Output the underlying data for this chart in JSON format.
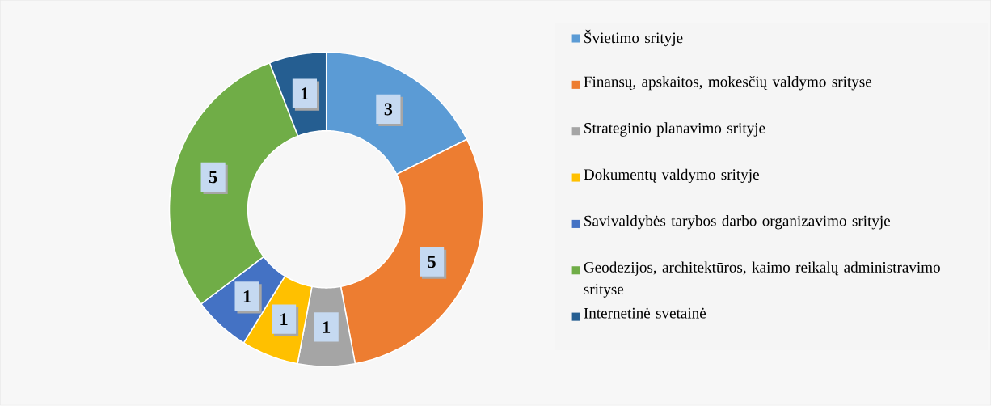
{
  "chart_data": {
    "type": "donut",
    "categories": [
      "Švietimo srityje",
      "Finansų, apskaitos, mokesčių valdymo srityse",
      "Strateginio planavimo srityje",
      "Dokumentų valdymo srityje",
      "Savivaldybės tarybos darbo organizavimo srityje",
      "Geodezijos, architektūros, kaimo reikalų administravimo srityse",
      "Internetinė svetainė"
    ],
    "values": [
      3,
      5,
      1,
      1,
      1,
      5,
      1
    ],
    "data_labels": true,
    "colors": [
      "#5b9bd5",
      "#ed7d31",
      "#a5a5a5",
      "#ffc000",
      "#4472c4",
      "#70ad47",
      "#255e91"
    ],
    "legend": "right"
  }
}
